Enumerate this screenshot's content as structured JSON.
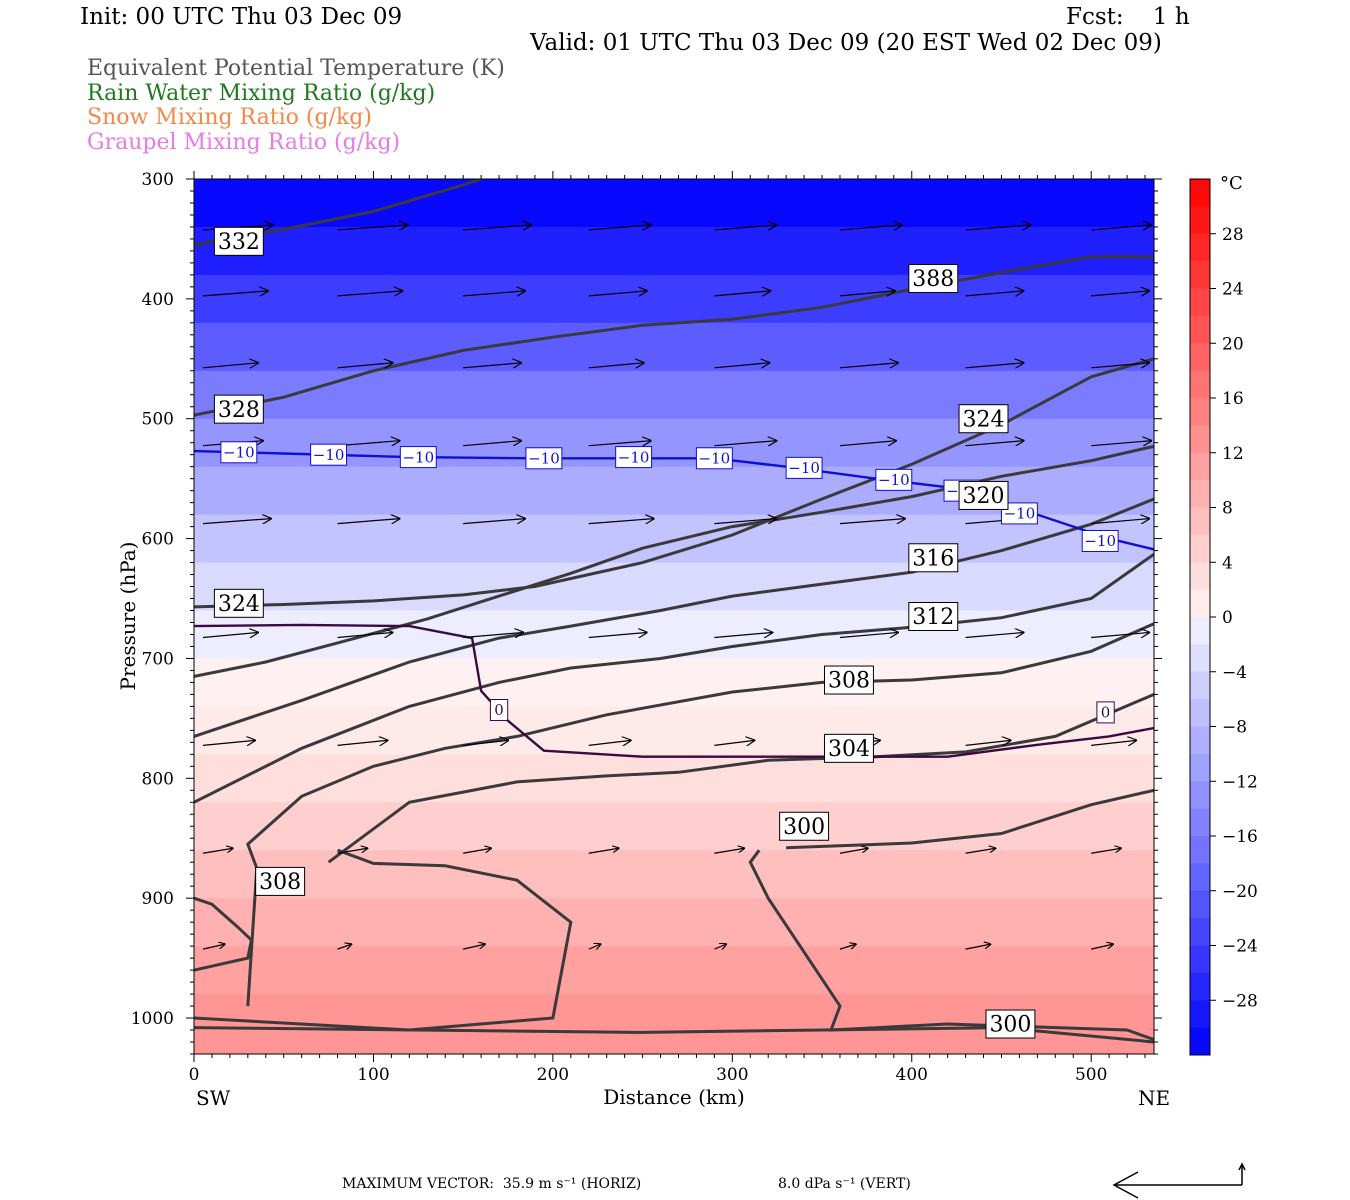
{
  "header": {
    "init": "Init: 00 UTC Thu 03 Dec 09",
    "fcst": "Fcst:    1 h",
    "valid": "Valid: 01 UTC Thu 03 Dec 09 (20 EST Wed 02 Dec 09)"
  },
  "legend": [
    {
      "label": "Equivalent Potential Temperature (K)",
      "color": "#555555"
    },
    {
      "label": "Rain Water Mixing Ratio (g/kg)",
      "color": "#1f7a1f"
    },
    {
      "label": "Snow Mixing Ratio (g/kg)",
      "color": "#f08a4b"
    },
    {
      "label": "Graupel Mixing Ratio (g/kg)",
      "color": "#e87ae8"
    }
  ],
  "footer": {
    "max_vector": "MAXIMUM VECTOR:  35.9 m s⁻¹ (HORIZ)",
    "vert": "8.0 dPa s⁻¹ (VERT)"
  },
  "chart_data": {
    "type": "cross-section contour",
    "xlabel": "Distance (km)",
    "ylabel": "Pressure (hPa)",
    "xlim": [
      0,
      535
    ],
    "ylim": [
      1030,
      300
    ],
    "x_ticks": [
      0,
      100,
      200,
      300,
      400,
      500
    ],
    "y_ticks": [
      300,
      400,
      500,
      600,
      700,
      800,
      900,
      1000
    ],
    "left_end_label": "SW",
    "right_end_label": "NE",
    "colorbar": {
      "unit": "°C",
      "levels": [
        -32,
        -30,
        -28,
        -26,
        -24,
        -22,
        -20,
        -18,
        -16,
        -14,
        -12,
        -10,
        -8,
        -6,
        -4,
        -2,
        0,
        2,
        4,
        6,
        8,
        10,
        12,
        14,
        16,
        18,
        20,
        22,
        24,
        26,
        28,
        30,
        32
      ],
      "tick_labels": [
        "28",
        "24",
        "20",
        "16",
        "12",
        "8",
        "4",
        "0",
        "−4",
        "−8",
        "−12",
        "−16",
        "−20",
        "−24",
        "−28"
      ],
      "tick_values": [
        28,
        24,
        20,
        16,
        12,
        8,
        4,
        0,
        -4,
        -8,
        -12,
        -16,
        -20,
        -24,
        -28
      ]
    },
    "temperature_profile": [
      {
        "p": 300,
        "t": -32
      },
      {
        "p": 340,
        "t": -30
      },
      {
        "p": 380,
        "t": -26
      },
      {
        "p": 420,
        "t": -22
      },
      {
        "p": 460,
        "t": -18
      },
      {
        "p": 500,
        "t": -14
      },
      {
        "p": 540,
        "t": -11
      },
      {
        "p": 580,
        "t": -8
      },
      {
        "p": 620,
        "t": -5
      },
      {
        "p": 660,
        "t": -2
      },
      {
        "p": 700,
        "t": 0
      },
      {
        "p": 740,
        "t": 1
      },
      {
        "p": 780,
        "t": 2
      },
      {
        "p": 820,
        "t": 4
      },
      {
        "p": 860,
        "t": 6
      },
      {
        "p": 900,
        "t": 8
      },
      {
        "p": 940,
        "t": 10
      },
      {
        "p": 980,
        "t": 12
      },
      {
        "p": 1030,
        "t": 13
      }
    ],
    "theta_e_contours": [
      {
        "label": "332",
        "label_pos": [
          25,
          352
        ],
        "points": [
          [
            0,
            355
          ],
          [
            50,
            342
          ],
          [
            100,
            327
          ],
          [
            150,
            305
          ],
          [
            160,
            300
          ]
        ]
      },
      {
        "label": "328",
        "label_pos": [
          25,
          492
        ],
        "points": [
          [
            0,
            497
          ],
          [
            50,
            482
          ],
          [
            100,
            460
          ],
          [
            150,
            443
          ],
          [
            200,
            432
          ],
          [
            250,
            422
          ],
          [
            300,
            417
          ],
          [
            350,
            407
          ],
          [
            400,
            392
          ],
          [
            450,
            378
          ],
          [
            500,
            365
          ],
          [
            535,
            365
          ]
        ]
      },
      {
        "label": "388",
        "label_pos": [
          412,
          383
        ],
        "points": []
      },
      {
        "label": "324",
        "label_pos": [
          25,
          654
        ],
        "points": [
          [
            0,
            657
          ],
          [
            50,
            655
          ],
          [
            100,
            652
          ],
          [
            150,
            647
          ],
          [
            190,
            640
          ],
          [
            250,
            620
          ],
          [
            300,
            597
          ],
          [
            350,
            567
          ],
          [
            400,
            538
          ],
          [
            450,
            505
          ],
          [
            500,
            465
          ],
          [
            535,
            450
          ]
        ]
      },
      {
        "label": "324",
        "label_pos": [
          440,
          500
        ],
        "points": []
      },
      {
        "label": "320",
        "label_pos": [
          440,
          564
        ],
        "points": [
          [
            0,
            715
          ],
          [
            40,
            703
          ],
          [
            80,
            687
          ],
          [
            130,
            667
          ],
          [
            170,
            648
          ],
          [
            210,
            629
          ],
          [
            250,
            608
          ],
          [
            300,
            590
          ],
          [
            350,
            578
          ],
          [
            400,
            565
          ],
          [
            450,
            548
          ],
          [
            500,
            535
          ],
          [
            535,
            523
          ]
        ]
      },
      {
        "label": "316",
        "label_pos": [
          412,
          616
        ],
        "points": [
          [
            0,
            765
          ],
          [
            60,
            735
          ],
          [
            120,
            703
          ],
          [
            170,
            683
          ],
          [
            210,
            673
          ],
          [
            260,
            660
          ],
          [
            300,
            648
          ],
          [
            350,
            638
          ],
          [
            400,
            628
          ],
          [
            450,
            610
          ],
          [
            500,
            588
          ],
          [
            535,
            567
          ]
        ]
      },
      {
        "label": "312",
        "label_pos": [
          412,
          665
        ],
        "points": [
          [
            0,
            820
          ],
          [
            60,
            775
          ],
          [
            120,
            740
          ],
          [
            170,
            720
          ],
          [
            210,
            708
          ],
          [
            260,
            700
          ],
          [
            300,
            690
          ],
          [
            350,
            680
          ],
          [
            400,
            674
          ],
          [
            450,
            666
          ],
          [
            500,
            650
          ],
          [
            535,
            613
          ]
        ]
      },
      {
        "label": "308",
        "label_pos": [
          365,
          718
        ],
        "points": [
          [
            30,
            990
          ],
          [
            35,
            875
          ],
          [
            30,
            855
          ],
          [
            60,
            815
          ],
          [
            100,
            790
          ],
          [
            140,
            775
          ],
          [
            180,
            765
          ],
          [
            230,
            747
          ],
          [
            300,
            728
          ],
          [
            350,
            720
          ],
          [
            400,
            718
          ],
          [
            450,
            712
          ],
          [
            500,
            694
          ],
          [
            535,
            671
          ]
        ]
      },
      {
        "label": "304",
        "label_pos": [
          365,
          775
        ],
        "points": [
          [
            75,
            870
          ],
          [
            120,
            820
          ],
          [
            180,
            803
          ],
          [
            230,
            798
          ],
          [
            270,
            795
          ],
          [
            320,
            785
          ],
          [
            380,
            782
          ],
          [
            430,
            778
          ],
          [
            480,
            765
          ],
          [
            535,
            730
          ]
        ]
      },
      {
        "label": "308",
        "label_pos": [
          48,
          886
        ],
        "points": [
          [
            0,
            960
          ],
          [
            30,
            950
          ],
          [
            32,
            935
          ],
          [
            25,
            925
          ],
          [
            10,
            905
          ],
          [
            0,
            900
          ]
        ]
      },
      {
        "label": "300",
        "label_pos": [
          340,
          840
        ],
        "points": [
          [
            80,
            860
          ],
          [
            100,
            871
          ],
          [
            140,
            873
          ],
          [
            180,
            885
          ],
          [
            210,
            920
          ],
          [
            200,
            1000
          ],
          [
            120,
            1010
          ],
          [
            0,
            1000
          ]
        ]
      },
      {
        "label": "300",
        "label_pos": [
          455,
          1005
        ],
        "points": [
          [
            315,
            860
          ],
          [
            310,
            870
          ],
          [
            320,
            900
          ],
          [
            360,
            990
          ],
          [
            355,
            1010
          ],
          [
            420,
            1005
          ],
          [
            520,
            1010
          ],
          [
            535,
            1018
          ]
        ]
      },
      {
        "label": "",
        "label_pos": null,
        "points": [
          [
            330,
            858
          ],
          [
            400,
            854
          ],
          [
            450,
            846
          ],
          [
            500,
            822
          ],
          [
            535,
            810
          ]
        ]
      },
      {
        "label": "",
        "label_pos": null,
        "points": [
          [
            0,
            1008
          ],
          [
            250,
            1012
          ],
          [
            350,
            1010
          ],
          [
            450,
            1008
          ],
          [
            535,
            1020
          ]
        ]
      }
    ],
    "isotherm_minus10": {
      "label": "−10",
      "label_positions": [
        [
          25,
          528
        ],
        [
          75,
          530
        ],
        [
          125,
          532
        ],
        [
          195,
          533
        ],
        [
          245,
          532
        ],
        [
          290,
          533
        ],
        [
          340,
          541
        ],
        [
          390,
          551
        ],
        [
          428,
          560
        ],
        [
          460,
          579
        ],
        [
          505,
          602
        ]
      ],
      "points": [
        [
          0,
          527
        ],
        [
          50,
          529
        ],
        [
          120,
          532
        ],
        [
          190,
          533
        ],
        [
          290,
          533
        ],
        [
          330,
          540
        ],
        [
          380,
          550
        ],
        [
          430,
          559
        ],
        [
          470,
          580
        ],
        [
          510,
          600
        ],
        [
          535,
          609
        ]
      ]
    },
    "isotherm_0": {
      "label": "0",
      "label_positions": [
        [
          170,
          743
        ],
        [
          508,
          745
        ]
      ],
      "points": [
        [
          0,
          673
        ],
        [
          60,
          672
        ],
        [
          120,
          673
        ],
        [
          155,
          683
        ],
        [
          160,
          727
        ],
        [
          175,
          752
        ],
        [
          195,
          777
        ],
        [
          250,
          782
        ],
        [
          350,
          782
        ],
        [
          420,
          782
        ],
        [
          470,
          772
        ],
        [
          510,
          765
        ],
        [
          535,
          758
        ]
      ]
    },
    "wind_vectors": [
      {
        "p": 340,
        "x": [
          5,
          80,
          150,
          220,
          290,
          360,
          430,
          500
        ],
        "len": [
          70,
          70,
          68,
          62,
          62,
          62,
          65,
          60
        ]
      },
      {
        "p": 395,
        "x": [
          5,
          80,
          150,
          220,
          290,
          360,
          430,
          500
        ],
        "len": [
          65,
          65,
          62,
          58,
          56,
          55,
          58,
          58
        ]
      },
      {
        "p": 455,
        "x": [
          5,
          80,
          150,
          220,
          290,
          360,
          430,
          500
        ],
        "len": [
          55,
          55,
          58,
          55,
          55,
          58,
          58,
          58
        ]
      },
      {
        "p": 520,
        "x": [
          5,
          80,
          150,
          220,
          290,
          360,
          430,
          500
        ],
        "len": [
          60,
          62,
          58,
          62,
          62,
          56,
          58,
          60
        ]
      },
      {
        "p": 585,
        "x": [
          5,
          80,
          150,
          220,
          290,
          360,
          430,
          500
        ],
        "len": [
          68,
          62,
          62,
          65,
          62,
          65,
          60,
          58
        ]
      },
      {
        "p": 680,
        "x": [
          5,
          80,
          150,
          220,
          290,
          360,
          430,
          500
        ],
        "len": [
          55,
          55,
          60,
          58,
          58,
          58,
          58,
          58
        ]
      },
      {
        "p": 770,
        "x": [
          5,
          80,
          150,
          220,
          290,
          360,
          430,
          500
        ],
        "len": [
          52,
          50,
          45,
          42,
          40,
          40,
          45,
          45
        ]
      },
      {
        "p": 860,
        "x": [
          5,
          80,
          150,
          220,
          290,
          360,
          430,
          500
        ],
        "len": [
          30,
          30,
          28,
          30,
          30,
          28,
          30,
          30
        ]
      },
      {
        "p": 940,
        "x": [
          5,
          80,
          150,
          220,
          290,
          360,
          430,
          500
        ],
        "len": [
          22,
          14,
          22,
          12,
          12,
          16,
          25,
          22
        ]
      }
    ]
  }
}
